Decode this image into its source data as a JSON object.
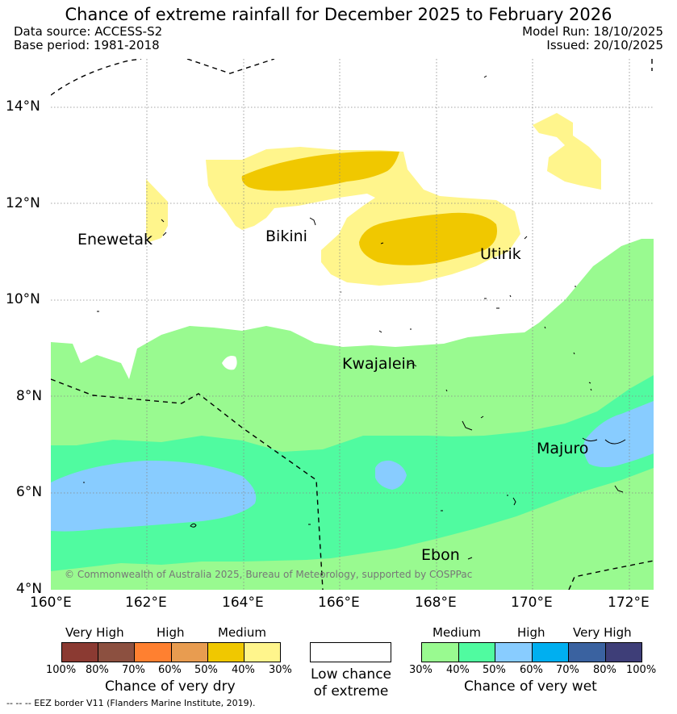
{
  "header": {
    "title": "Chance of extreme rainfall for December 2025 to February 2026",
    "data_source": "Data source: ACCESS-S2",
    "base_period": "Base period: 1981-2018",
    "model_run": "Model Run: 18/10/2025",
    "issued": "Issued: 20/10/2025"
  },
  "map": {
    "lat_labels": [
      "14°N",
      "12°N",
      "10°N",
      "8°N",
      "6°N",
      "4°N"
    ],
    "lon_labels": [
      "160°E",
      "162°E",
      "164°E",
      "166°E",
      "168°E",
      "170°E",
      "172°E"
    ],
    "places": [
      "Enewetak",
      "Bikini",
      "Utirik",
      "Kwajalein",
      "Majuro",
      "Ebon"
    ],
    "copyright": "© Commonwealth of Australia 2025, Bureau of Meteorology, supported by COSPPac"
  },
  "legend": {
    "dry": {
      "categories": [
        "Very High",
        "High",
        "Medium"
      ],
      "percent_ticks": [
        "100%",
        "80%",
        "70%",
        "60%",
        "50%",
        "40%",
        "30%"
      ],
      "colors": [
        "#8b3a32",
        "#8c5040",
        "#ff8030",
        "#e89c50",
        "#f0c800",
        "#fff58c"
      ],
      "caption": "Chance of very dry"
    },
    "neutral": {
      "caption": "Low chance of extreme",
      "color": "#ffffff"
    },
    "wet": {
      "categories": [
        "Medium",
        "High",
        "Very High"
      ],
      "percent_ticks": [
        "30%",
        "40%",
        "50%",
        "60%",
        "70%",
        "80%",
        "100%"
      ],
      "colors": [
        "#99fa90",
        "#50fba0",
        "#88ccff",
        "#00aff0",
        "#3a62a0",
        "#3e3e78"
      ],
      "caption": "Chance of very wet"
    }
  },
  "footer": {
    "eez_note": "--  --  -- EEZ border V11 (Flanders Marine Institute, 2019)."
  }
}
